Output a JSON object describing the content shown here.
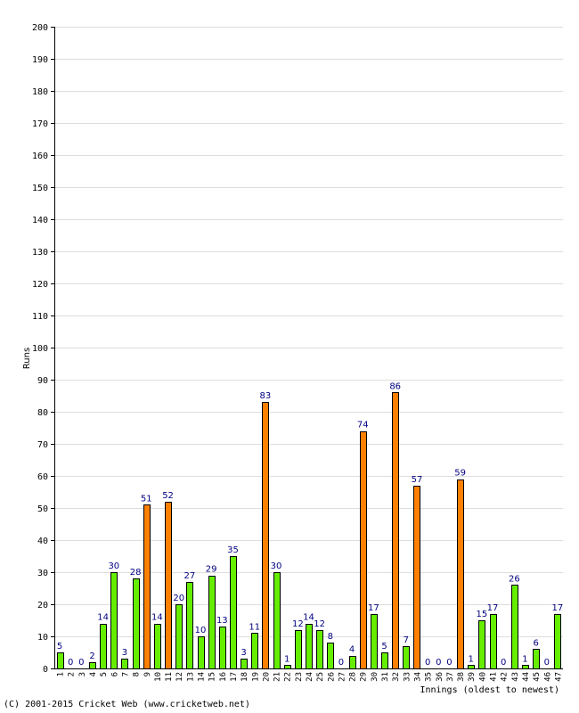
{
  "chart_data": {
    "type": "bar",
    "ylabel": "Runs",
    "xlabel": "Innings (oldest to newest)",
    "ylim": [
      0,
      200
    ],
    "ytick_step": 10,
    "grid": true,
    "categories": [
      "1",
      "2",
      "3",
      "4",
      "5",
      "6",
      "7",
      "8",
      "9",
      "10",
      "11",
      "12",
      "13",
      "14",
      "15",
      "16",
      "17",
      "18",
      "19",
      "20",
      "21",
      "22",
      "23",
      "24",
      "25",
      "26",
      "27",
      "28",
      "29",
      "30",
      "31",
      "32",
      "33",
      "34",
      "35",
      "36",
      "37",
      "38",
      "39",
      "40",
      "41",
      "42",
      "43",
      "44",
      "45",
      "46",
      "47"
    ],
    "values": [
      5,
      0,
      0,
      2,
      14,
      30,
      3,
      28,
      51,
      14,
      52,
      20,
      27,
      10,
      29,
      13,
      35,
      3,
      11,
      83,
      30,
      1,
      12,
      14,
      12,
      8,
      0,
      4,
      74,
      17,
      5,
      86,
      7,
      57,
      0,
      0,
      0,
      59,
      1,
      15,
      17,
      0,
      26,
      1,
      6,
      0,
      17
    ],
    "colors": {
      "under_50": "#66ee00",
      "fifty_plus": "#ff8000",
      "outline": "#000000",
      "label": "#000080",
      "grid": "#dddddd"
    }
  },
  "footer": "(C) 2001-2015 Cricket Web (www.cricketweb.net)"
}
